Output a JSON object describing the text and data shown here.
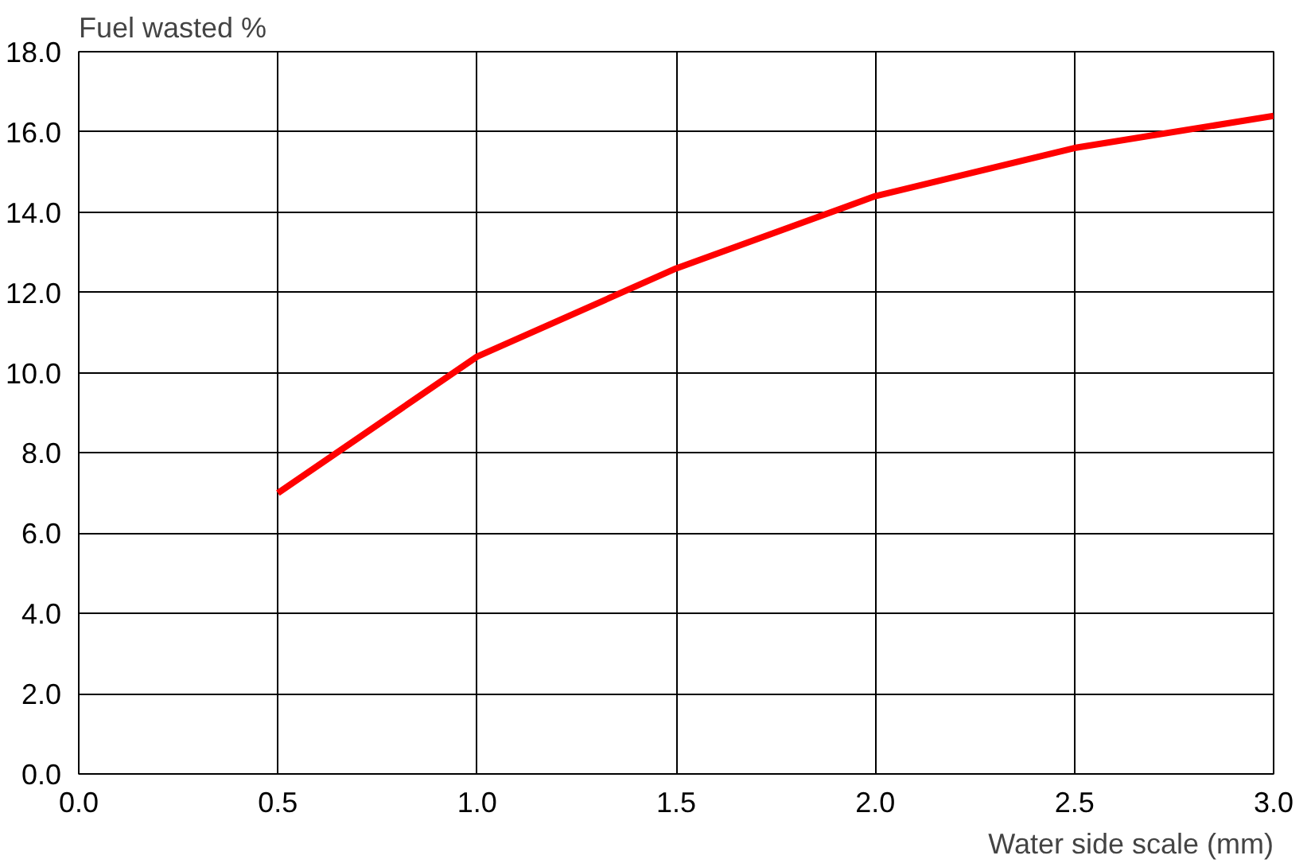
{
  "chart_data": {
    "type": "line",
    "xlabel": "Water side scale (mm)",
    "ylabel": "Fuel wasted %",
    "x": [
      0.5,
      1.0,
      1.5,
      2.0,
      2.5,
      3.0
    ],
    "series": [
      {
        "color": "#ff0000",
        "values": [
          7.0,
          10.4,
          12.6,
          14.4,
          15.6,
          16.4
        ]
      }
    ],
    "xlim": [
      0,
      3
    ],
    "ylim": [
      0,
      18
    ],
    "xticks": [
      {
        "value": 0,
        "label": "0.0"
      },
      {
        "value": 0.5,
        "label": "0.5"
      },
      {
        "value": 1,
        "label": "1.0"
      },
      {
        "value": 1.5,
        "label": "1.5"
      },
      {
        "value": 2,
        "label": "2.0"
      },
      {
        "value": 2.5,
        "label": "2.5"
      },
      {
        "value": 3,
        "label": "3.0"
      }
    ],
    "yticks": [
      {
        "value": 0,
        "label": "0.0"
      },
      {
        "value": 2,
        "label": "2.0"
      },
      {
        "value": 4,
        "label": "4.0"
      },
      {
        "value": 6,
        "label": "6.0"
      },
      {
        "value": 8,
        "label": "8.0"
      },
      {
        "value": 10,
        "label": "10.0"
      },
      {
        "value": 12,
        "label": "12.0"
      },
      {
        "value": 14,
        "label": "14.0"
      },
      {
        "value": 16,
        "label": "16.0"
      },
      {
        "value": 18,
        "label": "18.0"
      }
    ],
    "grid": true,
    "marker": "none",
    "line_style": "solid"
  }
}
